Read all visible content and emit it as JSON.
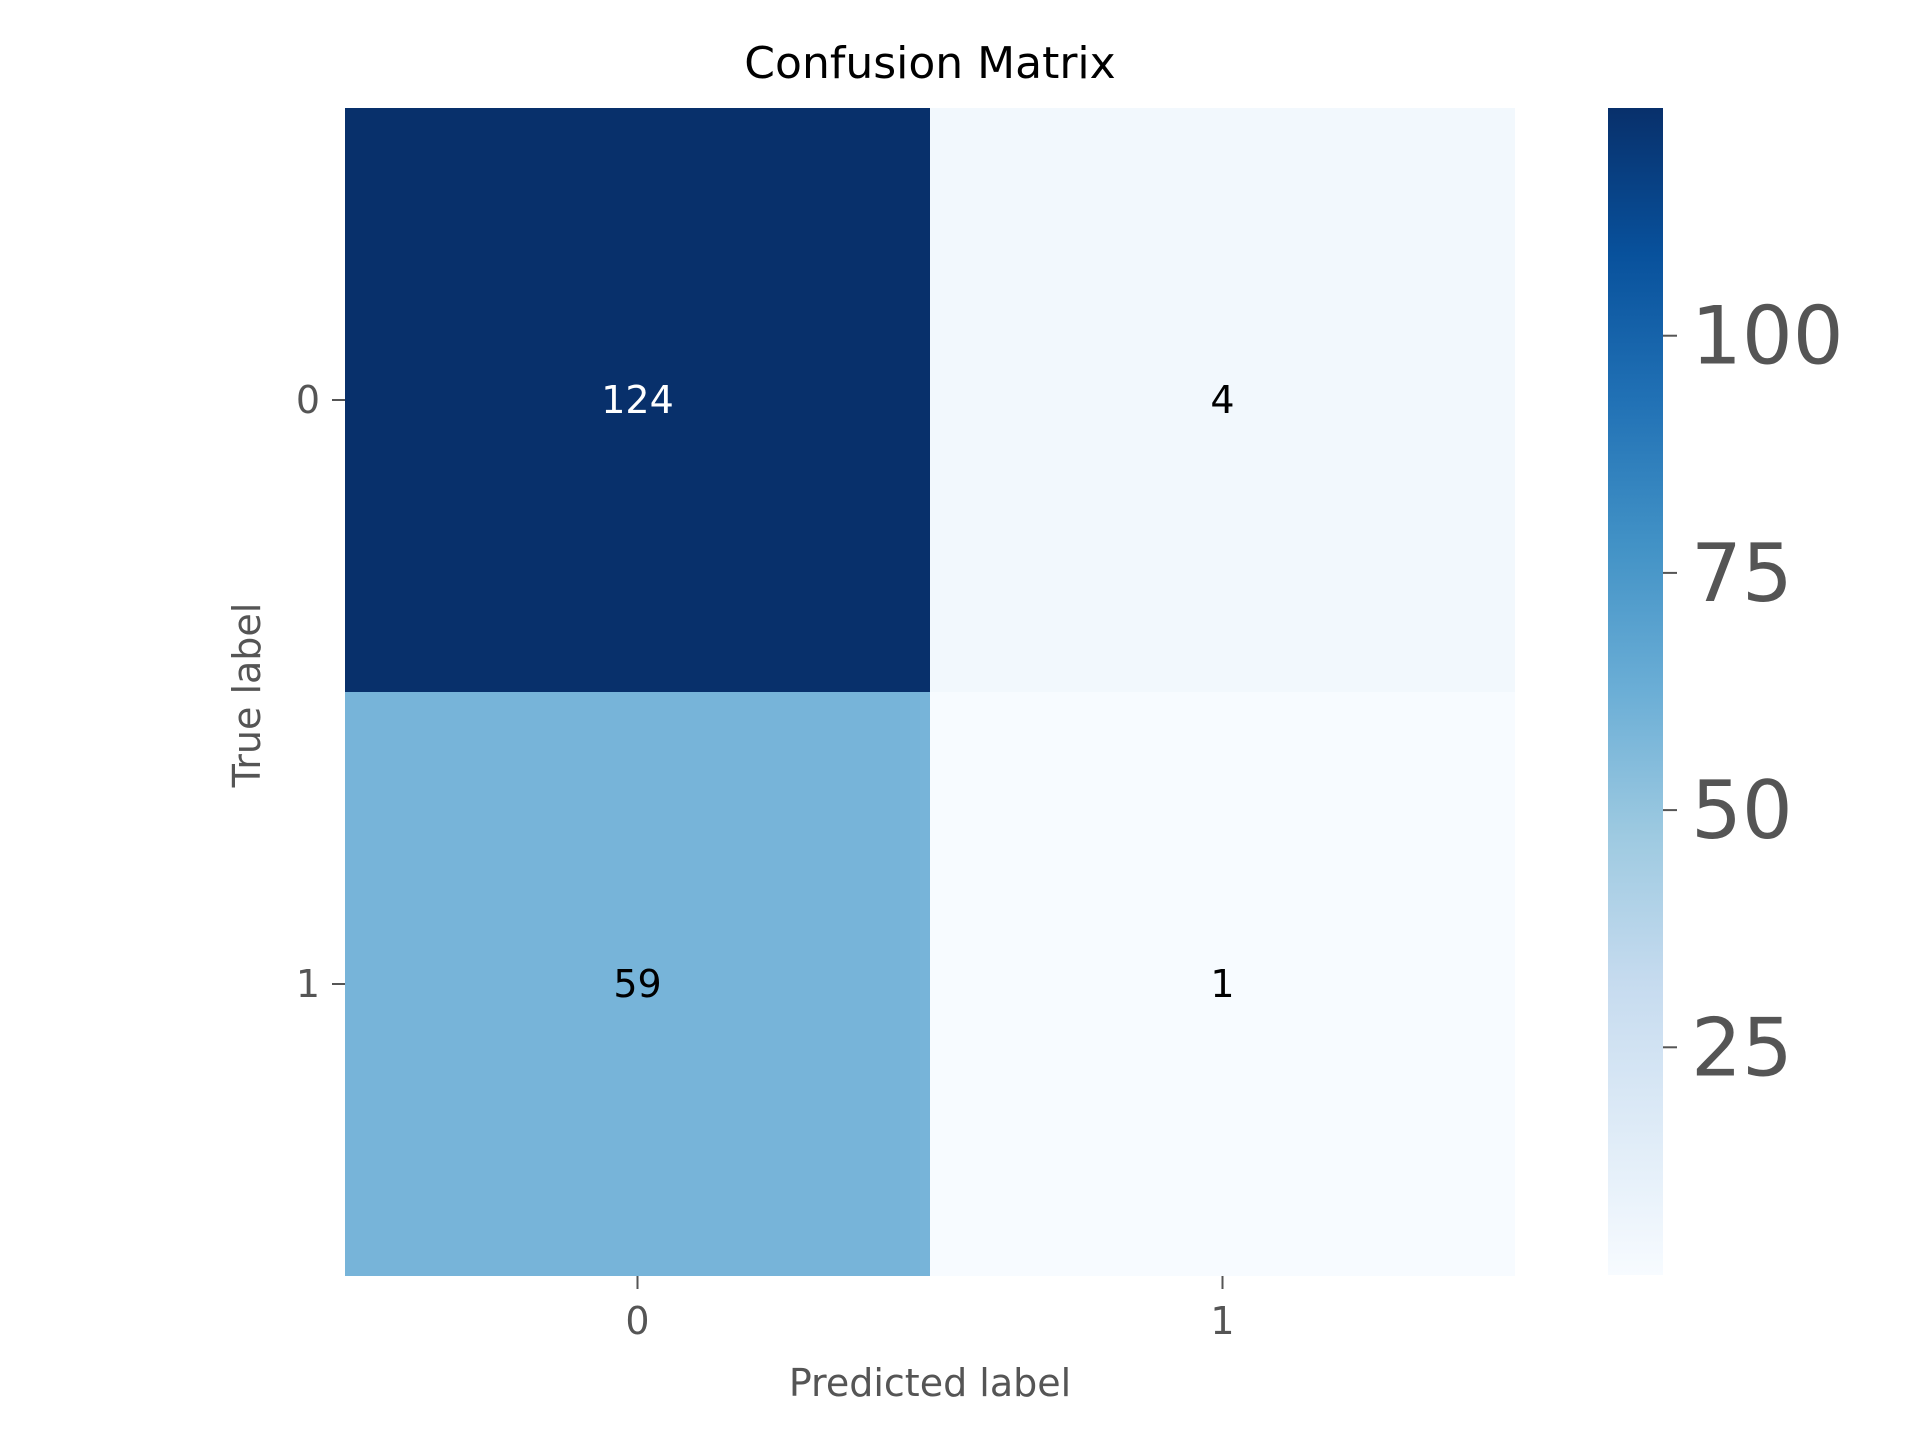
{
  "chart_data": {
    "type": "heatmap",
    "title": "Confusion Matrix",
    "xlabel": "Predicted label",
    "ylabel": "True label",
    "x_categories": [
      "0",
      "1"
    ],
    "y_categories": [
      "0",
      "1"
    ],
    "values": [
      [
        124,
        4
      ],
      [
        59,
        1
      ]
    ],
    "colormap": "Blues",
    "colorbar": {
      "range": [
        1,
        124
      ],
      "ticks": [
        25,
        50,
        75,
        100
      ],
      "tick_labels": [
        "25",
        "50",
        "75",
        "100"
      ]
    },
    "colors": {
      "text": "#000000",
      "axis_text": "#555555",
      "cell_text_dark_bg": "#ffffff",
      "cell_text_light_bg": "#000000"
    },
    "grid": false
  }
}
